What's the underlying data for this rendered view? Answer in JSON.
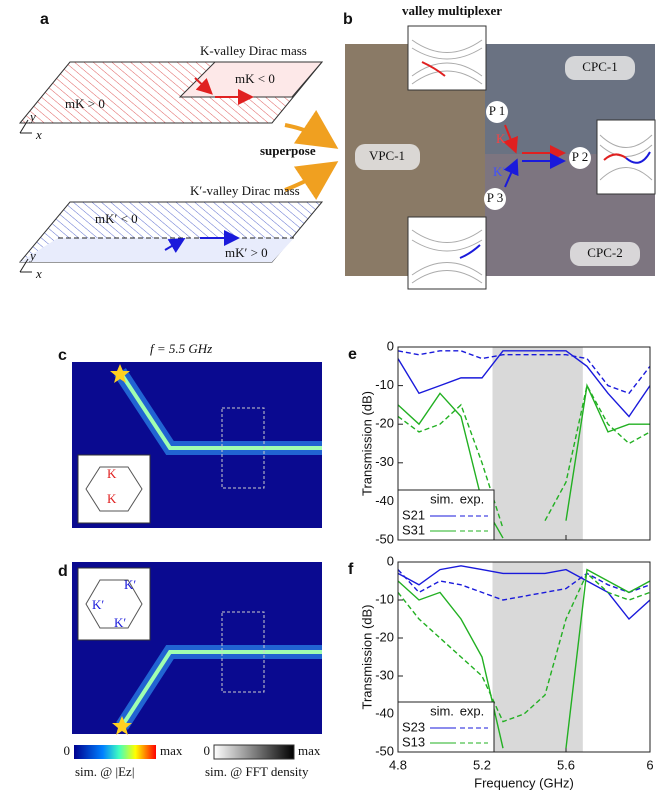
{
  "panel_a": {
    "label": "a",
    "k_title": "K-valley Dirac mass",
    "k_mass_neg": "mK < 0",
    "k_mass_pos": "mK > 0",
    "axis_y": "y",
    "axis_x": "x",
    "superpose": "superpose",
    "kp_title": "K′-valley Dirac mass",
    "kp_mass_neg": "mK′ < 0",
    "kp_mass_pos": "mK′ > 0"
  },
  "panel_b": {
    "label": "b",
    "title": "valley multiplexer",
    "regions": [
      "CPC-1",
      "VPC-1",
      "CPC-2"
    ],
    "ports": [
      "P 1",
      "P 2",
      "P 3"
    ],
    "valleys": [
      "K",
      "K′"
    ]
  },
  "panel_c": {
    "label": "c",
    "caption": "f = 5.5 GHz",
    "inset": [
      "K",
      "K"
    ]
  },
  "panel_d": {
    "label": "d",
    "inset": [
      "K′",
      "K′",
      "K′"
    ]
  },
  "colorbars": [
    {
      "min": "0",
      "max": "max",
      "caption": "sim. @ |Ez|"
    },
    {
      "min": "0",
      "max": "max",
      "caption": "sim. @ FFT density"
    }
  ],
  "chart_data": [
    {
      "type": "line",
      "label": "e",
      "ylabel": "Transmission (dB)",
      "x": [
        4.8,
        4.9,
        5.0,
        5.1,
        5.2,
        5.3,
        5.4,
        5.5,
        5.6,
        5.7,
        5.8,
        5.9,
        6.0
      ],
      "xlim": [
        4.8,
        6
      ],
      "xticks": [
        4.8,
        5.2,
        5.6,
        6
      ],
      "ylim": [
        -50,
        0
      ],
      "yticks": [
        0,
        -10,
        -20,
        -30,
        -40,
        -50
      ],
      "band": [
        5.25,
        5.68
      ],
      "band_color": "#d9d9d9",
      "legend_columns": [
        "sim.",
        "exp."
      ],
      "series": [
        {
          "name": "S21",
          "color": "#1a1adb",
          "sim": [
            -3,
            -12,
            -10,
            -8,
            -8,
            -1,
            -1,
            -1,
            -1,
            -5,
            -12,
            -18,
            -10
          ],
          "exp": [
            -1,
            -2,
            -1,
            -1,
            -3,
            -2,
            -2,
            -2,
            -2,
            -3,
            -10,
            -12,
            -5
          ]
        },
        {
          "name": "S31",
          "color": "#22b022",
          "sim": [
            -15,
            -20,
            -12,
            -18,
            -40,
            -49.5,
            null,
            null,
            -45,
            -10,
            -22,
            -20,
            -20
          ],
          "exp": [
            -18,
            -22,
            -20,
            -15,
            -30,
            -47,
            null,
            -45,
            -35,
            -10,
            -20,
            -25,
            -22
          ]
        }
      ]
    },
    {
      "type": "line",
      "label": "f",
      "ylabel": "Transmission (dB)",
      "xlabel": "Frequency (GHz)",
      "x": [
        4.8,
        4.9,
        5.0,
        5.1,
        5.2,
        5.3,
        5.4,
        5.5,
        5.6,
        5.7,
        5.8,
        5.9,
        6.0
      ],
      "xlim": [
        4.8,
        6
      ],
      "xticks": [
        4.8,
        5.2,
        5.6,
        6
      ],
      "ylim": [
        -50,
        0
      ],
      "yticks": [
        0,
        -10,
        -20,
        -30,
        -40,
        -50
      ],
      "band": [
        5.25,
        5.68
      ],
      "band_color": "#d9d9d9",
      "legend_columns": [
        "sim.",
        "exp."
      ],
      "series": [
        {
          "name": "S23",
          "color": "#1a1adb",
          "sim": [
            -3,
            -6,
            -2,
            -1,
            -2,
            -3,
            -3,
            -3,
            -2,
            -5,
            -8,
            -15,
            -10
          ],
          "exp": [
            -2,
            -8,
            -5,
            -6,
            -8,
            -10,
            -9,
            -8,
            -7,
            -3,
            -6,
            -8,
            -6
          ]
        },
        {
          "name": "S13",
          "color": "#22b022",
          "sim": [
            -5,
            -10,
            -8,
            -15,
            -25,
            -49,
            null,
            null,
            -49,
            -2,
            -5,
            -8,
            -5
          ],
          "exp": [
            -8,
            -15,
            -20,
            -25,
            -30,
            -42,
            -40,
            -35,
            -15,
            -3,
            -8,
            -10,
            -8
          ]
        }
      ]
    }
  ]
}
